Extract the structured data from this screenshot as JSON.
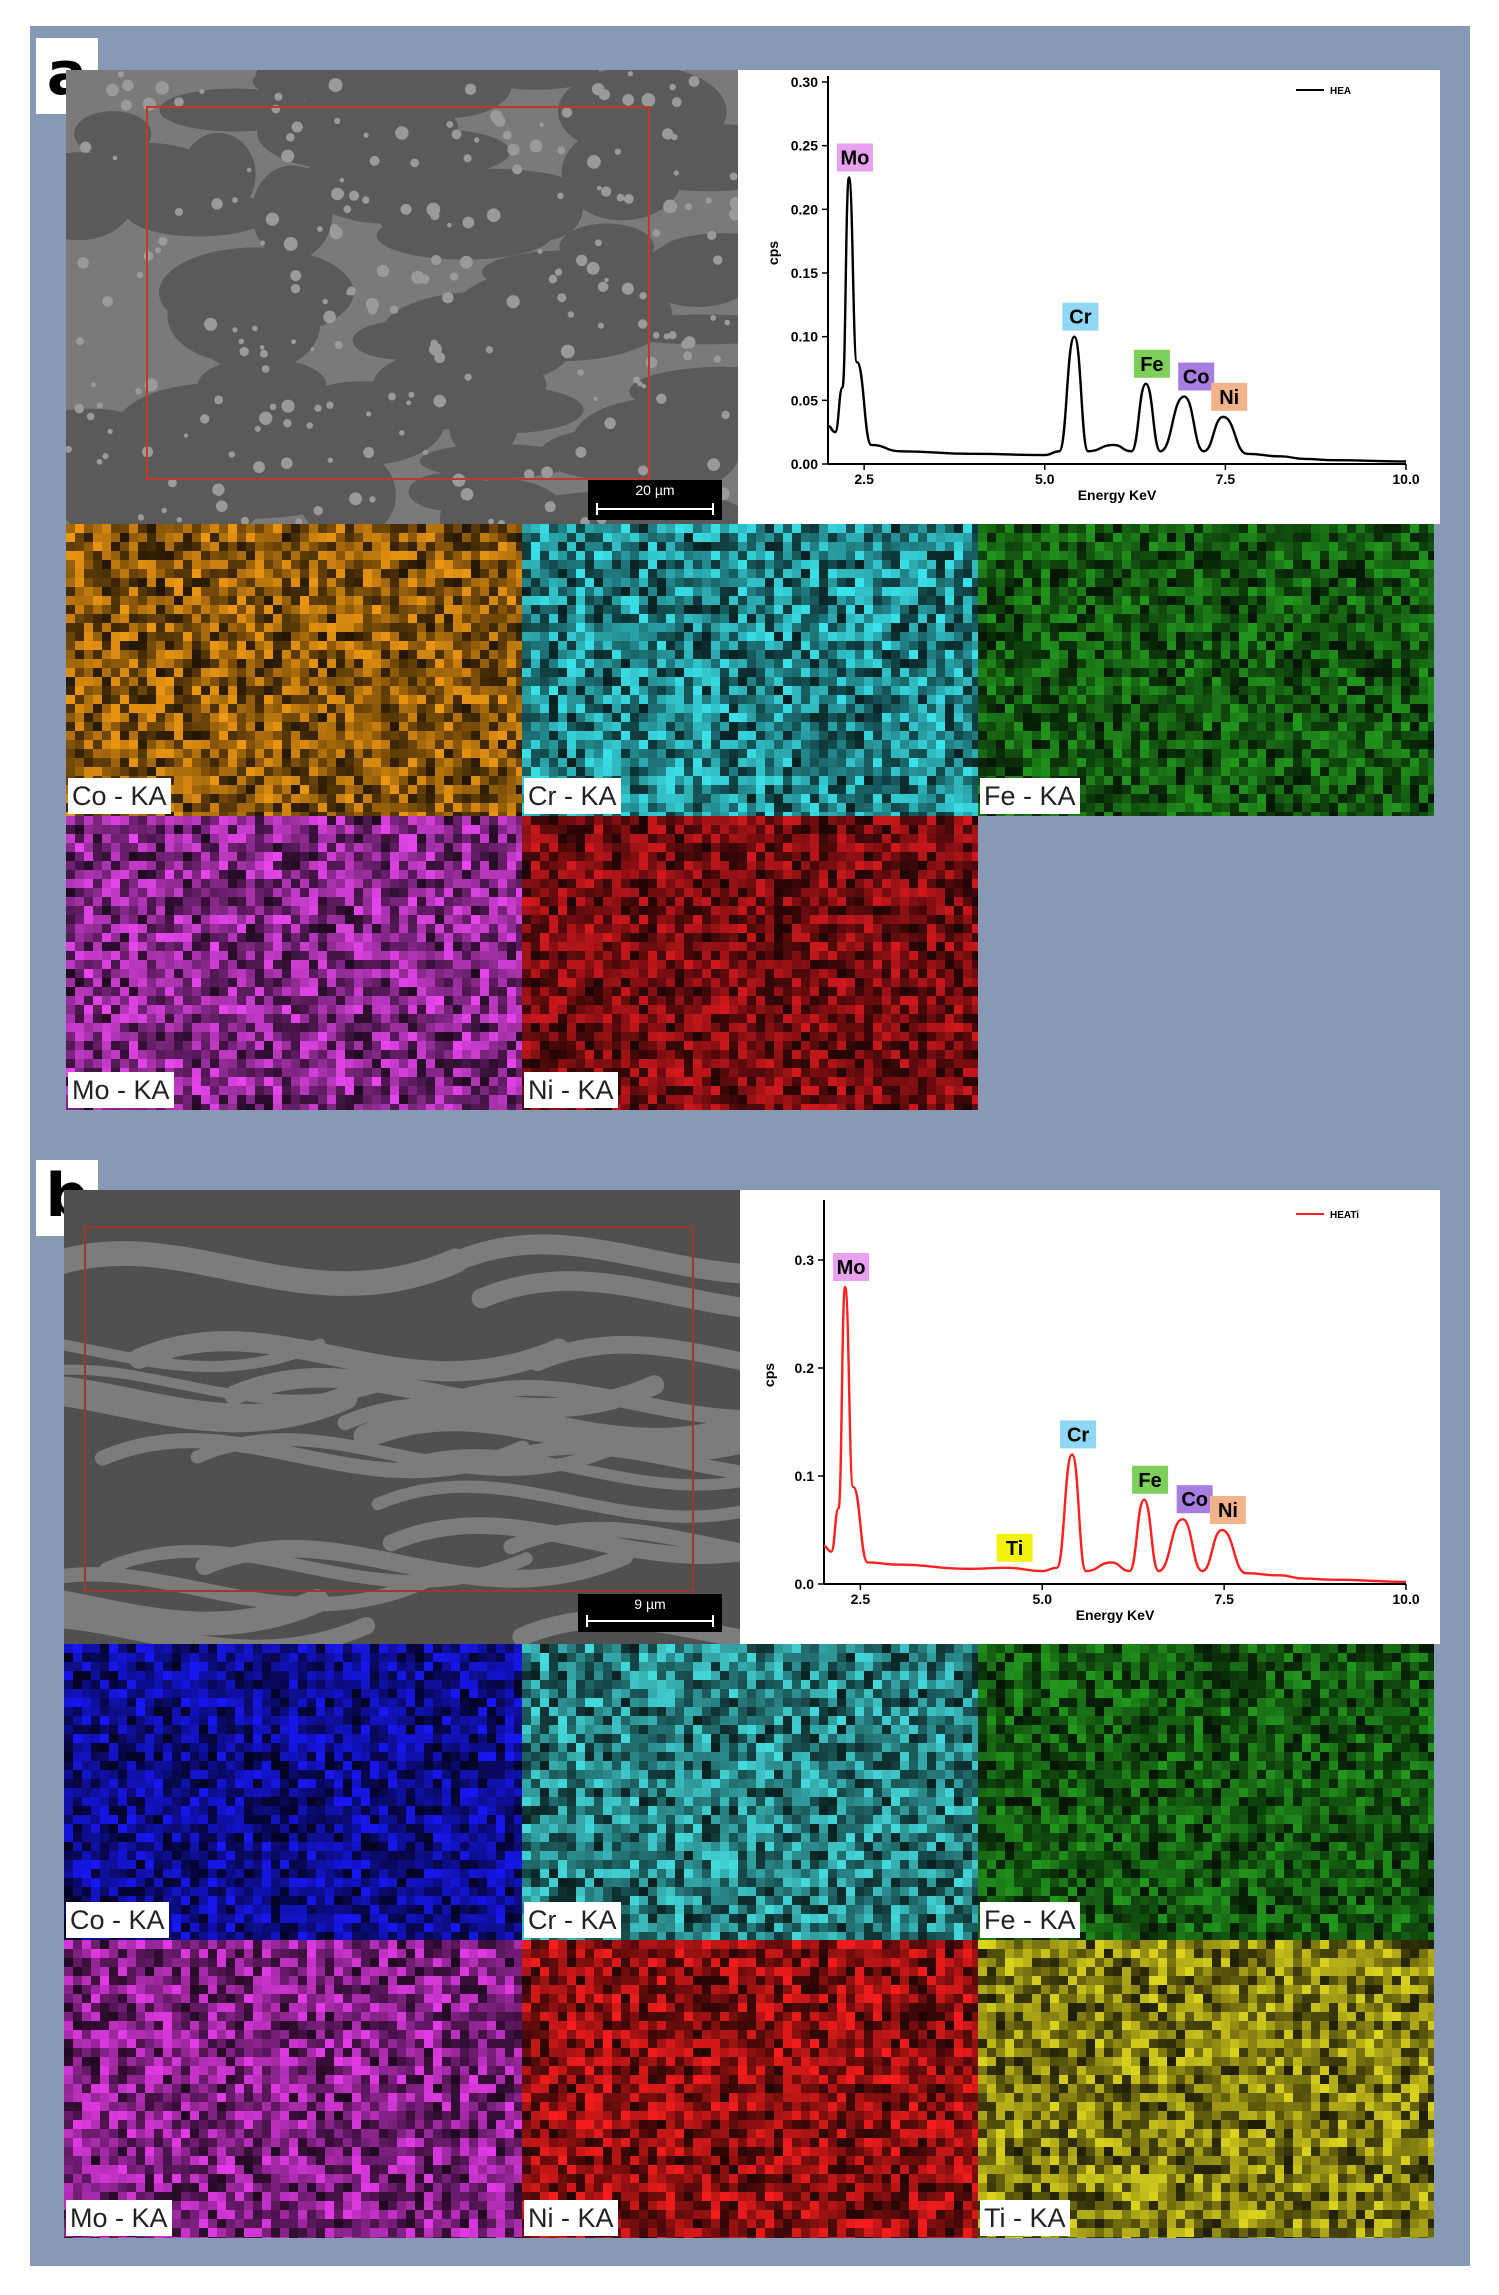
{
  "panels": [
    {
      "letter": "a",
      "sem_scale": "20 µm",
      "spectrum": {
        "legend": "HEA",
        "line_color": "#000000",
        "peaks": [
          {
            "label": "Mo",
            "color": "#e8a1ef"
          },
          {
            "label": "Cr",
            "color": "#8fd7f2"
          },
          {
            "label": "Fe",
            "color": "#7dcf5a"
          },
          {
            "label": "Co",
            "color": "#a77de0"
          },
          {
            "label": "Ni",
            "color": "#f3b38a"
          }
        ]
      },
      "maps": [
        {
          "label": "Co - KA",
          "color": "#d98a10"
        },
        {
          "label": "Cr - KA",
          "color": "#35cfd6"
        },
        {
          "label": "Fe - KA",
          "color": "#1f8a1a"
        },
        {
          "label": "Mo - KA",
          "color": "#d33fd8"
        },
        {
          "label": "Ni - KA",
          "color": "#c0161a"
        }
      ]
    },
    {
      "letter": "b",
      "sem_scale": "9 µm",
      "spectrum": {
        "legend": "HEATi",
        "line_color": "#ff2020",
        "peaks": [
          {
            "label": "Mo",
            "color": "#e8a1ef"
          },
          {
            "label": "Ti",
            "color": "#f4f20d"
          },
          {
            "label": "Cr",
            "color": "#8fd7f2"
          },
          {
            "label": "Fe",
            "color": "#7dcf5a"
          },
          {
            "label": "Co",
            "color": "#a77de0"
          },
          {
            "label": "Ni",
            "color": "#f3b38a"
          }
        ]
      },
      "maps": [
        {
          "label": "Co - KA",
          "color": "#1515e0"
        },
        {
          "label": "Cr - KA",
          "color": "#3ec7c9"
        },
        {
          "label": "Fe - KA",
          "color": "#1f8a1a"
        },
        {
          "label": "Mo - KA",
          "color": "#cf35d2"
        },
        {
          "label": "Ni - KA",
          "color": "#e31a1a"
        },
        {
          "label": "Ti - KA",
          "color": "#c9c21a"
        }
      ]
    }
  ],
  "chart_data": [
    {
      "type": "line",
      "legend": [
        "HEA"
      ],
      "xlabel": "Energy KeV",
      "ylabel": "cps",
      "xlim": [
        2.0,
        10.0
      ],
      "ylim": [
        0.0,
        0.3
      ],
      "xticks": [
        "2.5",
        "5.0",
        "7.5",
        "10.0"
      ],
      "yticks": [
        "0.00",
        "0.05",
        "0.10",
        "0.15",
        "0.20",
        "0.25",
        "0.30"
      ],
      "series": [
        {
          "name": "HEA",
          "x": [
            2.0,
            2.1,
            2.2,
            2.29,
            2.4,
            2.6,
            3.0,
            4.0,
            5.0,
            5.2,
            5.41,
            5.6,
            5.95,
            6.2,
            6.4,
            6.6,
            6.93,
            7.2,
            7.47,
            7.8,
            8.26,
            8.6,
            9.0,
            10.0
          ],
          "y": [
            0.03,
            0.025,
            0.06,
            0.225,
            0.08,
            0.015,
            0.01,
            0.008,
            0.007,
            0.01,
            0.1,
            0.01,
            0.015,
            0.01,
            0.063,
            0.01,
            0.053,
            0.01,
            0.037,
            0.008,
            0.006,
            0.004,
            0.003,
            0.002
          ]
        }
      ],
      "peak_labels": [
        {
          "label": "Mo",
          "x": 2.29,
          "y": 0.225
        },
        {
          "label": "Cr",
          "x": 5.41,
          "y": 0.1
        },
        {
          "label": "Fe",
          "x": 6.4,
          "y": 0.063
        },
        {
          "label": "Co",
          "x": 6.93,
          "y": 0.053
        },
        {
          "label": "Ni",
          "x": 7.47,
          "y": 0.037
        }
      ]
    },
    {
      "type": "line",
      "legend": [
        "HEATi"
      ],
      "xlabel": "Energy KeV",
      "ylabel": "cps",
      "xlim": [
        2.0,
        10.0
      ],
      "ylim": [
        0.0,
        0.35
      ],
      "xticks": [
        "2.5",
        "5.0",
        "7.5",
        "10.0"
      ],
      "yticks": [
        "0.0",
        "0.1",
        "0.2",
        "0.3"
      ],
      "series": [
        {
          "name": "HEATi",
          "x": [
            2.0,
            2.1,
            2.2,
            2.29,
            2.4,
            2.6,
            3.0,
            4.0,
            4.51,
            5.0,
            5.2,
            5.41,
            5.6,
            5.95,
            6.2,
            6.4,
            6.6,
            6.93,
            7.2,
            7.47,
            7.8,
            8.26,
            8.6,
            9.0,
            10.0
          ],
          "y": [
            0.035,
            0.03,
            0.07,
            0.275,
            0.09,
            0.02,
            0.018,
            0.014,
            0.015,
            0.012,
            0.015,
            0.12,
            0.012,
            0.02,
            0.012,
            0.078,
            0.012,
            0.06,
            0.012,
            0.05,
            0.01,
            0.008,
            0.005,
            0.004,
            0.002
          ]
        }
      ],
      "peak_labels": [
        {
          "label": "Mo",
          "x": 2.29,
          "y": 0.275
        },
        {
          "label": "Ti",
          "x": 4.51,
          "y": 0.015
        },
        {
          "label": "Cr",
          "x": 5.41,
          "y": 0.12
        },
        {
          "label": "Fe",
          "x": 6.4,
          "y": 0.078
        },
        {
          "label": "Co",
          "x": 6.93,
          "y": 0.06
        },
        {
          "label": "Ni",
          "x": 7.47,
          "y": 0.05
        }
      ]
    }
  ]
}
